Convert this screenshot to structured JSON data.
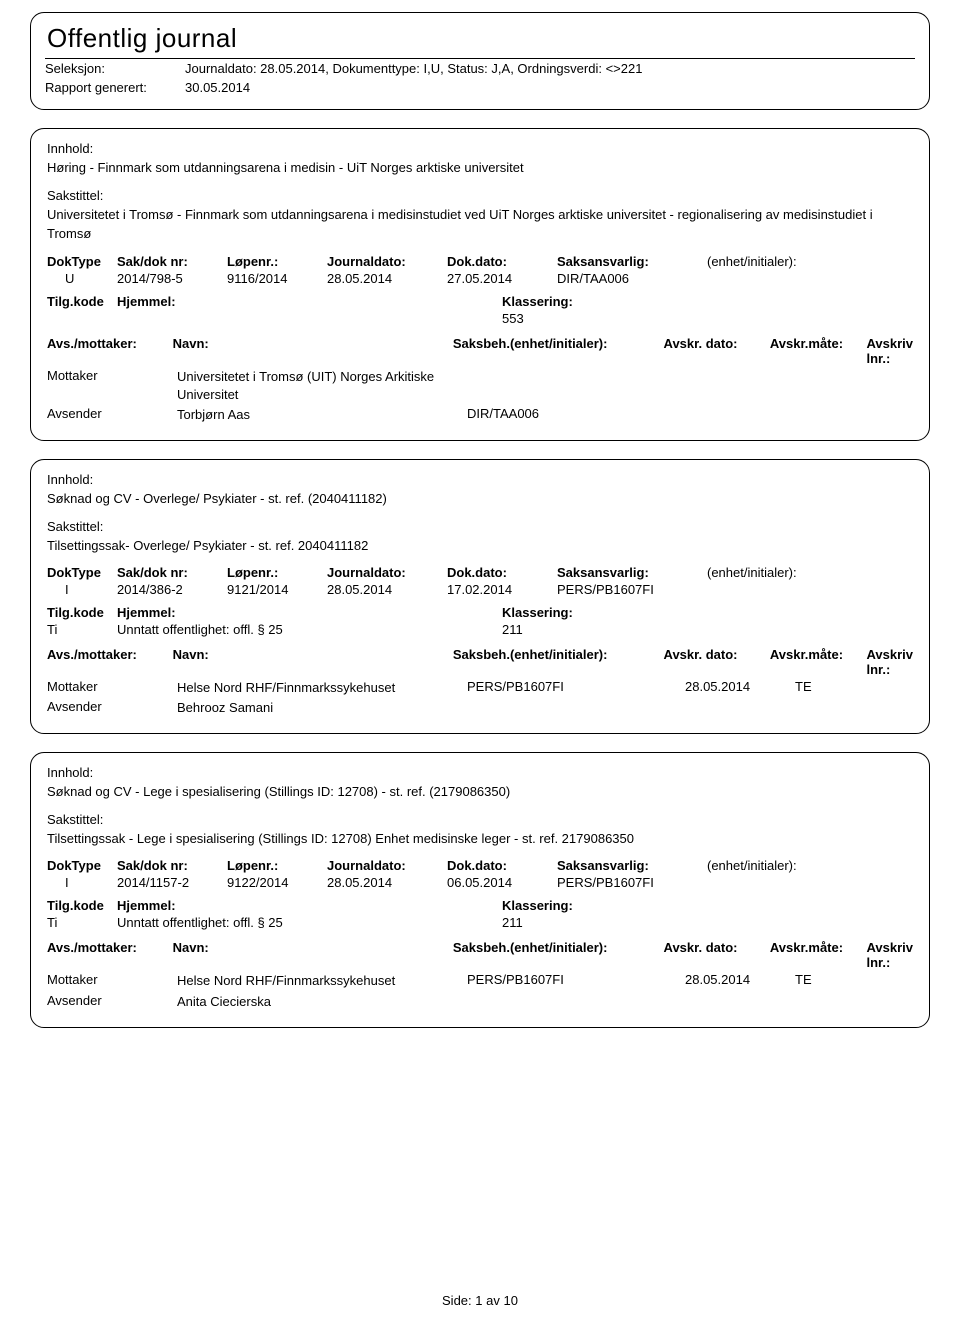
{
  "header": {
    "title": "Offentlig journal",
    "seleksjon_label": "Seleksjon:",
    "seleksjon_value": "Journaldato: 28.05.2014, Dokumenttype: I,U, Status: J,A, Ordningsverdi: <>221",
    "rapport_label": "Rapport generert:",
    "rapport_value": "30.05.2014"
  },
  "labels": {
    "innhold": "Innhold:",
    "sakstittel": "Sakstittel:",
    "doktype": "DokType",
    "saknr": "Sak/dok nr:",
    "lopenr": "Løpenr.:",
    "journaldato": "Journaldato:",
    "dokdato": "Dok.dato:",
    "saksansvarlig": "Saksansvarlig:",
    "enhet": "(enhet/initialer):",
    "tilgkode": "Tilg.kode",
    "hjemmel": "Hjemmel:",
    "klassering": "Klassering:",
    "avsmottaker": "Avs./mottaker:",
    "navn": "Navn:",
    "saksbeh": "Saksbeh.(enhet/initialer):",
    "avskrdato": "Avskr. dato:",
    "avskrmate": "Avskr.måte:",
    "avskrivlnr": "Avskriv lnr.:",
    "mottaker": "Mottaker",
    "avsender": "Avsender"
  },
  "entries": [
    {
      "innhold": "Høring - Finnmark som utdanningsarena i medisin - UiT Norges arktiske universitet",
      "sakstittel": "Universitetet i Tromsø - Finnmark som utdanningsarena i medisinstudiet ved UiT Norges arktiske universitet - regionalisering av medisinstudiet i Tromsø",
      "doktype": "U",
      "saknr": "2014/798-5",
      "lopenr": "9116/2014",
      "journaldato": "28.05.2014",
      "dokdato": "27.05.2014",
      "saksansvarlig": "DIR/TAA006",
      "enhet": "",
      "tilgkode": "",
      "hjemmel_text": "",
      "klassering": "553",
      "parties": [
        {
          "role": "Mottaker",
          "navn": "Universitetet i Tromsø (UIT) Norges Arkitiske Universitet",
          "saksbeh": "",
          "avskrdato": "",
          "avskrmate": "",
          "avskrivlnr": ""
        },
        {
          "role": "Avsender",
          "navn": "Torbjørn Aas",
          "saksbeh": "DIR/TAA006",
          "avskrdato": "",
          "avskrmate": "",
          "avskrivlnr": ""
        }
      ]
    },
    {
      "innhold": "Søknad og CV - Overlege/ Psykiater - st. ref. (2040411182)",
      "sakstittel": "Tilsettingssak- Overlege/ Psykiater  - st. ref. 2040411182",
      "doktype": "I",
      "saknr": "2014/386-2",
      "lopenr": "9121/2014",
      "journaldato": "28.05.2014",
      "dokdato": "17.02.2014",
      "saksansvarlig": "PERS/PB1607FI",
      "enhet": "",
      "tilgkode": "Ti",
      "hjemmel_text": "Unntatt offentlighet: offl. § 25",
      "klassering": "211",
      "parties": [
        {
          "role": "Mottaker",
          "navn": "Helse Nord RHF/Finnmarkssykehuset",
          "saksbeh": "PERS/PB1607FI",
          "avskrdato": "28.05.2014",
          "avskrmate": "TE",
          "avskrivlnr": ""
        },
        {
          "role": "Avsender",
          "navn": "Behrooz Samani",
          "saksbeh": "",
          "avskrdato": "",
          "avskrmate": "",
          "avskrivlnr": ""
        }
      ]
    },
    {
      "innhold": "Søknad og CV - Lege i spesialisering (Stillings ID: 12708) - st. ref. (2179086350)",
      "sakstittel": "Tilsettingssak - Lege i spesialisering (Stillings ID: 12708) Enhet medisinske leger - st. ref. 2179086350",
      "doktype": "I",
      "saknr": "2014/1157-2",
      "lopenr": "9122/2014",
      "journaldato": "28.05.2014",
      "dokdato": "06.05.2014",
      "saksansvarlig": "PERS/PB1607FI",
      "enhet": "",
      "tilgkode": "Ti",
      "hjemmel_text": "Unntatt offentlighet: offl. § 25",
      "klassering": "211",
      "parties": [
        {
          "role": "Mottaker",
          "navn": "Helse Nord RHF/Finnmarkssykehuset",
          "saksbeh": "PERS/PB1607FI",
          "avskrdato": "28.05.2014",
          "avskrmate": "TE",
          "avskrivlnr": ""
        },
        {
          "role": "Avsender",
          "navn": "Anita Ciecierska",
          "saksbeh": "",
          "avskrdato": "",
          "avskrmate": "",
          "avskrivlnr": ""
        }
      ]
    }
  ],
  "footer": {
    "side_label": "Side:",
    "page": "1",
    "av": "av",
    "total": "10"
  }
}
